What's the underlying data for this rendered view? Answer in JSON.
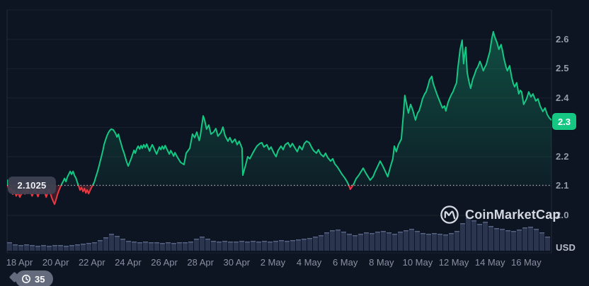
{
  "chart": {
    "watermark_text": "CoinMarketCap",
    "open_price_label": "2.1025",
    "current_price_badge": "2.3",
    "history_count": "35",
    "usd_label": "USD",
    "colors": {
      "background": "#0d1522",
      "up": "#16c784",
      "down": "#ea3943",
      "badge_bg": "#16c784",
      "volume_bar": "rgba(90,102,142,0.40)",
      "volume_cap": "rgba(140,150,190,0.45)",
      "grid": "rgba(255,255,255,0.06)",
      "border": "rgba(255,255,255,0.10)",
      "threshold_dots": "rgba(230,233,240,0.85)"
    }
  },
  "chart_data": {
    "type": "line",
    "title": "",
    "ylabel": "USD",
    "ylim": [
      1.87,
      2.72
    ],
    "y_ticks": [
      2.6,
      2.5,
      2.4,
      2.3,
      2.2,
      2.1,
      2.0
    ],
    "x_ticks": [
      "18 Apr",
      "20 Apr",
      "22 Apr",
      "24 Apr",
      "26 Apr",
      "28 Apr",
      "30 Apr",
      "2 May",
      "4 May",
      "6 May",
      "8 May",
      "10 May",
      "12 May",
      "14 May",
      "16 May"
    ],
    "x_tick_interval_days": 2,
    "threshold_price": 2.1025,
    "last_price": 2.32,
    "last_price_rounded": "2.3",
    "price_points_t_days_vs_usd": [
      [
        -0.68,
        2.12
      ],
      [
        -0.64,
        2.1
      ],
      [
        -0.55,
        2.083
      ],
      [
        -0.45,
        2.094
      ],
      [
        -0.37,
        2.072
      ],
      [
        -0.28,
        2.085
      ],
      [
        -0.18,
        2.066
      ],
      [
        -0.08,
        2.079
      ],
      [
        0.02,
        2.062
      ],
      [
        0.12,
        2.075
      ],
      [
        0.22,
        2.085
      ],
      [
        0.3,
        2.073
      ],
      [
        0.38,
        2.089
      ],
      [
        0.46,
        2.076
      ],
      [
        0.54,
        2.091
      ],
      [
        0.62,
        2.078
      ],
      [
        0.7,
        2.066
      ],
      [
        0.78,
        2.08
      ],
      [
        0.86,
        2.091
      ],
      [
        0.95,
        2.076
      ],
      [
        1.02,
        2.064
      ],
      [
        1.1,
        2.08
      ],
      [
        1.17,
        2.091
      ],
      [
        1.25,
        2.078
      ],
      [
        1.32,
        2.091
      ],
      [
        1.4,
        2.076
      ],
      [
        1.48,
        2.062
      ],
      [
        1.56,
        2.078
      ],
      [
        1.63,
        2.089
      ],
      [
        1.71,
        2.074
      ],
      [
        1.79,
        2.059
      ],
      [
        1.87,
        2.047
      ],
      [
        1.94,
        2.038
      ],
      [
        2.02,
        2.053
      ],
      [
        2.1,
        2.071
      ],
      [
        2.18,
        2.085
      ],
      [
        2.26,
        2.097
      ],
      [
        2.34,
        2.107
      ],
      [
        2.42,
        2.117
      ],
      [
        2.49,
        2.126
      ],
      [
        2.57,
        2.115
      ],
      [
        2.65,
        2.131
      ],
      [
        2.73,
        2.141
      ],
      [
        2.8,
        2.15
      ],
      [
        2.88,
        2.14
      ],
      [
        2.96,
        2.15
      ],
      [
        3.04,
        2.136
      ],
      [
        3.12,
        2.127
      ],
      [
        3.2,
        2.112
      ],
      [
        3.28,
        2.098
      ],
      [
        3.35,
        2.086
      ],
      [
        3.43,
        2.095
      ],
      [
        3.51,
        2.081
      ],
      [
        3.59,
        2.092
      ],
      [
        3.67,
        2.076
      ],
      [
        3.74,
        2.087
      ],
      [
        3.82,
        2.074
      ],
      [
        3.9,
        2.085
      ],
      [
        3.98,
        2.095
      ],
      [
        4.06,
        2.104
      ],
      [
        4.14,
        2.114
      ],
      [
        4.21,
        2.129
      ],
      [
        4.29,
        2.145
      ],
      [
        4.37,
        2.162
      ],
      [
        4.45,
        2.182
      ],
      [
        4.53,
        2.201
      ],
      [
        4.61,
        2.222
      ],
      [
        4.68,
        2.242
      ],
      [
        4.76,
        2.258
      ],
      [
        4.84,
        2.272
      ],
      [
        4.92,
        2.283
      ],
      [
        5.0,
        2.29
      ],
      [
        5.07,
        2.294
      ],
      [
        5.19,
        2.291
      ],
      [
        5.31,
        2.279
      ],
      [
        5.39,
        2.267
      ],
      [
        5.47,
        2.277
      ],
      [
        5.54,
        2.26
      ],
      [
        5.62,
        2.243
      ],
      [
        5.7,
        2.226
      ],
      [
        5.78,
        2.212
      ],
      [
        5.86,
        2.195
      ],
      [
        5.93,
        2.181
      ],
      [
        6.01,
        2.168
      ],
      [
        6.09,
        2.181
      ],
      [
        6.17,
        2.193
      ],
      [
        6.25,
        2.208
      ],
      [
        6.33,
        2.222
      ],
      [
        6.4,
        2.212
      ],
      [
        6.48,
        2.227
      ],
      [
        6.56,
        2.236
      ],
      [
        6.64,
        2.226
      ],
      [
        6.72,
        2.238
      ],
      [
        6.79,
        2.229
      ],
      [
        6.87,
        2.241
      ],
      [
        6.95,
        2.231
      ],
      [
        7.03,
        2.243
      ],
      [
        7.11,
        2.231
      ],
      [
        7.19,
        2.219
      ],
      [
        7.26,
        2.231
      ],
      [
        7.34,
        2.241
      ],
      [
        7.42,
        2.231
      ],
      [
        7.5,
        2.219
      ],
      [
        7.58,
        2.209
      ],
      [
        7.65,
        2.221
      ],
      [
        7.73,
        2.233
      ],
      [
        7.81,
        2.224
      ],
      [
        7.89,
        2.236
      ],
      [
        7.97,
        2.226
      ],
      [
        8.05,
        2.238
      ],
      [
        8.12,
        2.229
      ],
      [
        8.2,
        2.219
      ],
      [
        8.28,
        2.209
      ],
      [
        8.36,
        2.221
      ],
      [
        8.44,
        2.212
      ],
      [
        8.52,
        2.202
      ],
      [
        8.59,
        2.214
      ],
      [
        8.67,
        2.205
      ],
      [
        8.71,
        2.2
      ],
      [
        8.9,
        2.181
      ],
      [
        9.09,
        2.173
      ],
      [
        9.21,
        2.212
      ],
      [
        9.41,
        2.229
      ],
      [
        9.56,
        2.277
      ],
      [
        9.68,
        2.265
      ],
      [
        9.8,
        2.284
      ],
      [
        9.93,
        2.255
      ],
      [
        9.99,
        2.27
      ],
      [
        10.15,
        2.339
      ],
      [
        10.23,
        2.325
      ],
      [
        10.34,
        2.294
      ],
      [
        10.46,
        2.308
      ],
      [
        10.58,
        2.277
      ],
      [
        10.73,
        2.284
      ],
      [
        10.85,
        2.296
      ],
      [
        10.97,
        2.27
      ],
      [
        11.13,
        2.282
      ],
      [
        11.24,
        2.301
      ],
      [
        11.36,
        2.272
      ],
      [
        11.52,
        2.253
      ],
      [
        11.63,
        2.265
      ],
      [
        11.75,
        2.248
      ],
      [
        11.91,
        2.26
      ],
      [
        12.03,
        2.241
      ],
      [
        12.14,
        2.253
      ],
      [
        12.3,
        2.229
      ],
      [
        12.34,
        2.137
      ],
      [
        12.5,
        2.173
      ],
      [
        12.61,
        2.2
      ],
      [
        12.73,
        2.193
      ],
      [
        12.89,
        2.212
      ],
      [
        13.0,
        2.224
      ],
      [
        13.12,
        2.236
      ],
      [
        13.28,
        2.245
      ],
      [
        13.39,
        2.248
      ],
      [
        13.51,
        2.233
      ],
      [
        13.67,
        2.241
      ],
      [
        13.79,
        2.224
      ],
      [
        13.9,
        2.233
      ],
      [
        14.06,
        2.212
      ],
      [
        14.18,
        2.2
      ],
      [
        14.29,
        2.221
      ],
      [
        14.45,
        2.236
      ],
      [
        14.57,
        2.224
      ],
      [
        14.68,
        2.241
      ],
      [
        14.84,
        2.248
      ],
      [
        14.96,
        2.233
      ],
      [
        15.08,
        2.245
      ],
      [
        15.23,
        2.229
      ],
      [
        15.35,
        2.217
      ],
      [
        15.47,
        2.236
      ],
      [
        15.62,
        2.224
      ],
      [
        15.74,
        2.245
      ],
      [
        15.86,
        2.253
      ],
      [
        16.01,
        2.248
      ],
      [
        16.13,
        2.233
      ],
      [
        16.25,
        2.221
      ],
      [
        16.41,
        2.212
      ],
      [
        16.52,
        2.224
      ],
      [
        16.64,
        2.209
      ],
      [
        16.8,
        2.2
      ],
      [
        16.91,
        2.212
      ],
      [
        17.03,
        2.197
      ],
      [
        17.19,
        2.185
      ],
      [
        17.31,
        2.193
      ],
      [
        17.42,
        2.176
      ],
      [
        17.58,
        2.164
      ],
      [
        17.7,
        2.152
      ],
      [
        17.82,
        2.14
      ],
      [
        17.97,
        2.128
      ],
      [
        18.09,
        2.116
      ],
      [
        18.21,
        2.101
      ],
      [
        18.28,
        2.089
      ],
      [
        18.36,
        2.096
      ],
      [
        18.48,
        2.108
      ],
      [
        18.6,
        2.125
      ],
      [
        18.75,
        2.137
      ],
      [
        18.87,
        2.149
      ],
      [
        18.99,
        2.161
      ],
      [
        19.14,
        2.144
      ],
      [
        19.26,
        2.132
      ],
      [
        19.38,
        2.12
      ],
      [
        19.54,
        2.132
      ],
      [
        19.65,
        2.149
      ],
      [
        19.77,
        2.164
      ],
      [
        19.93,
        2.185
      ],
      [
        20.08,
        2.168
      ],
      [
        20.35,
        2.132
      ],
      [
        20.51,
        2.168
      ],
      [
        20.63,
        2.193
      ],
      [
        20.71,
        2.236
      ],
      [
        20.82,
        2.217
      ],
      [
        20.94,
        2.241
      ],
      [
        21.1,
        2.26
      ],
      [
        21.22,
        2.349
      ],
      [
        21.29,
        2.409
      ],
      [
        21.41,
        2.373
      ],
      [
        21.49,
        2.349
      ],
      [
        21.61,
        2.378
      ],
      [
        21.72,
        2.361
      ],
      [
        21.88,
        2.325
      ],
      [
        22.0,
        2.349
      ],
      [
        22.08,
        2.356
      ],
      [
        22.19,
        2.378
      ],
      [
        22.27,
        2.397
      ],
      [
        22.39,
        2.414
      ],
      [
        22.47,
        2.421
      ],
      [
        22.59,
        2.445
      ],
      [
        22.66,
        2.462
      ],
      [
        22.78,
        2.474
      ],
      [
        22.86,
        2.45
      ],
      [
        22.98,
        2.428
      ],
      [
        23.09,
        2.409
      ],
      [
        23.17,
        2.397
      ],
      [
        23.29,
        2.378
      ],
      [
        23.37,
        2.366
      ],
      [
        23.48,
        2.373
      ],
      [
        23.56,
        2.356
      ],
      [
        23.68,
        2.385
      ],
      [
        23.76,
        2.397
      ],
      [
        23.88,
        2.414
      ],
      [
        23.95,
        2.421
      ],
      [
        24.07,
        2.44
      ],
      [
        24.15,
        2.452
      ],
      [
        24.23,
        2.505
      ],
      [
        24.35,
        2.566
      ],
      [
        24.46,
        2.597
      ],
      [
        24.54,
        2.517
      ],
      [
        24.58,
        2.541
      ],
      [
        24.66,
        2.573
      ],
      [
        24.74,
        2.486
      ],
      [
        24.85,
        2.452
      ],
      [
        24.93,
        2.433
      ],
      [
        25.05,
        2.465
      ],
      [
        25.13,
        2.477
      ],
      [
        25.24,
        2.498
      ],
      [
        25.32,
        2.505
      ],
      [
        25.44,
        2.525
      ],
      [
        25.52,
        2.513
      ],
      [
        25.63,
        2.493
      ],
      [
        25.71,
        2.505
      ],
      [
        25.79,
        2.513
      ],
      [
        25.91,
        2.541
      ],
      [
        25.99,
        2.558
      ],
      [
        26.1,
        2.602
      ],
      [
        26.18,
        2.626
      ],
      [
        26.26,
        2.609
      ],
      [
        26.38,
        2.59
      ],
      [
        26.49,
        2.566
      ],
      [
        26.61,
        2.582
      ],
      [
        26.69,
        2.561
      ],
      [
        26.77,
        2.534
      ],
      [
        26.89,
        2.505
      ],
      [
        26.96,
        2.493
      ],
      [
        27.08,
        2.51
      ],
      [
        27.2,
        2.469
      ],
      [
        27.28,
        2.45
      ],
      [
        27.36,
        2.438
      ],
      [
        27.47,
        2.452
      ],
      [
        27.59,
        2.414
      ],
      [
        27.67,
        2.426
      ],
      [
        27.75,
        2.421
      ],
      [
        27.86,
        2.378
      ],
      [
        28.02,
        2.397
      ],
      [
        28.14,
        2.421
      ],
      [
        28.26,
        2.404
      ],
      [
        28.37,
        2.414
      ],
      [
        28.53,
        2.39
      ],
      [
        28.65,
        2.397
      ],
      [
        28.77,
        2.373
      ],
      [
        28.92,
        2.354
      ],
      [
        29.04,
        2.366
      ],
      [
        29.16,
        2.344
      ],
      [
        29.28,
        2.332
      ],
      [
        29.39,
        2.325
      ]
    ],
    "volume_bars_arbitrary_units": [
      12,
      9,
      8,
      9,
      8,
      7,
      8,
      7,
      8,
      8,
      7,
      8,
      9,
      10,
      11,
      12,
      15,
      19,
      24,
      21,
      17,
      14,
      13,
      12,
      13,
      12,
      12,
      11,
      12,
      11,
      12,
      12,
      13,
      17,
      20,
      17,
      14,
      13,
      14,
      13,
      13,
      14,
      13,
      14,
      13,
      14,
      13,
      14,
      15,
      14,
      15,
      16,
      17,
      18,
      20,
      22,
      26,
      29,
      30,
      27,
      24,
      22,
      24,
      26,
      25,
      27,
      28,
      26,
      24,
      27,
      29,
      31,
      28,
      25,
      24,
      25,
      24,
      23,
      25,
      28,
      39,
      47,
      43,
      38,
      41,
      35,
      32,
      31,
      29,
      28,
      30,
      33,
      34,
      31,
      26,
      20
    ]
  }
}
